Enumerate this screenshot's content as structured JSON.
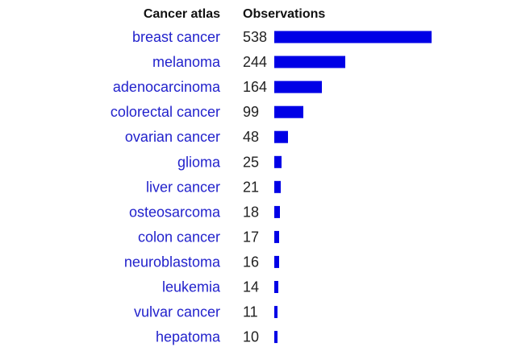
{
  "chart_data": {
    "type": "bar",
    "orientation": "horizontal",
    "columns": [
      "Cancer atlas",
      "Observations"
    ],
    "categories": [
      "breast cancer",
      "melanoma",
      "adenocarcinoma",
      "colorectal cancer",
      "ovarian cancer",
      "glioma",
      "liver cancer",
      "osteosarcoma",
      "colon cancer",
      "neuroblastoma",
      "leukemia",
      "vulvar cancer",
      "hepatoma"
    ],
    "values": [
      538,
      244,
      164,
      99,
      48,
      25,
      21,
      18,
      17,
      16,
      14,
      11,
      10
    ],
    "xlim": [
      0,
      538
    ],
    "grid": false,
    "legend": "none",
    "colors": {
      "bar": "#0000e6",
      "category_text": "#2222cc",
      "value_text": "#222222",
      "header_text": "#111111"
    }
  }
}
